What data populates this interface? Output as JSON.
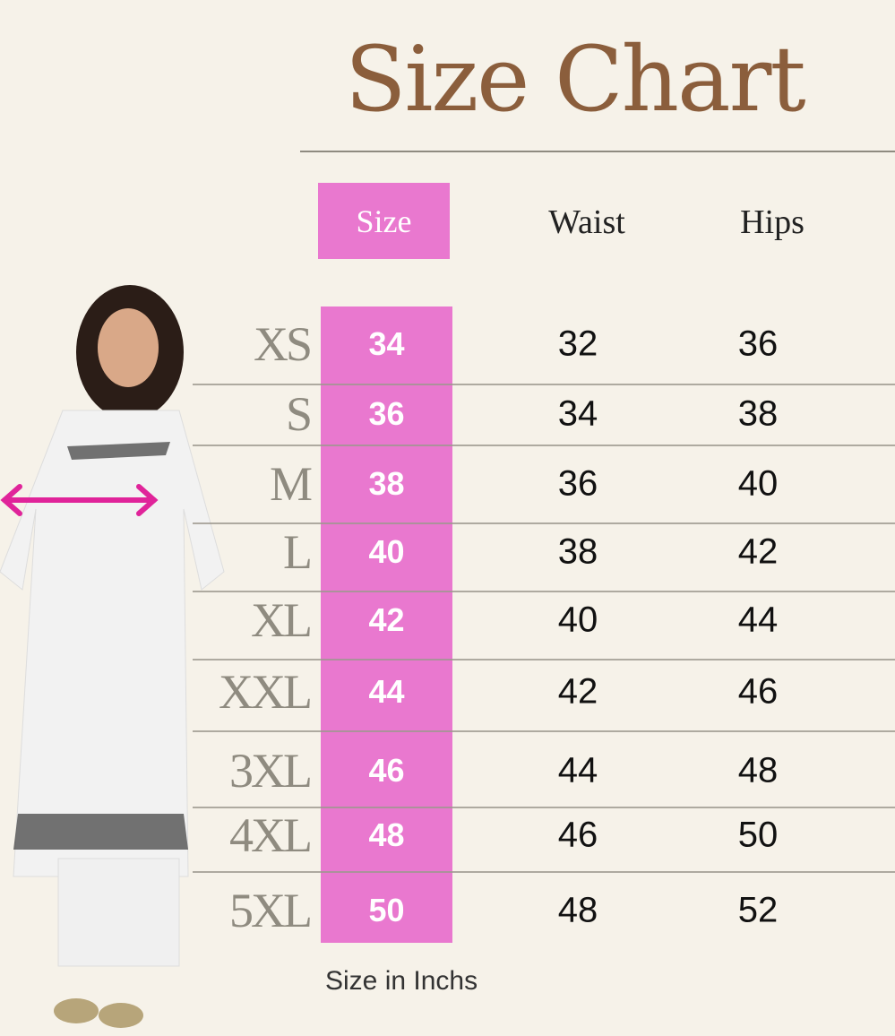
{
  "title": "Size Chart",
  "headers": {
    "size": "Size",
    "waist": "Waist",
    "hips": "Hips"
  },
  "rows": [
    {
      "label": "XS",
      "size": "34",
      "waist": "32",
      "hips": "36"
    },
    {
      "label": "S",
      "size": "36",
      "waist": "34",
      "hips": "38"
    },
    {
      "label": "M",
      "size": "38",
      "waist": "36",
      "hips": "40"
    },
    {
      "label": "L",
      "size": "40",
      "waist": "38",
      "hips": "42"
    },
    {
      "label": "XL",
      "size": "42",
      "waist": "40",
      "hips": "44"
    },
    {
      "label": "XXL",
      "size": "44",
      "waist": "42",
      "hips": "46"
    },
    {
      "label": "3XL",
      "size": "46",
      "waist": "44",
      "hips": "48"
    },
    {
      "label": "4XL",
      "size": "48",
      "waist": "46",
      "hips": "50"
    },
    {
      "label": "5XL",
      "size": "50",
      "waist": "48",
      "hips": "52"
    }
  ],
  "note": "Size in Inchs",
  "colors": {
    "background": "#f6f2e9",
    "accent_pink": "#e978cf",
    "title_brown": "#8b5e3c",
    "label_gray": "#8f8b80",
    "arrow": "#e0249a"
  }
}
